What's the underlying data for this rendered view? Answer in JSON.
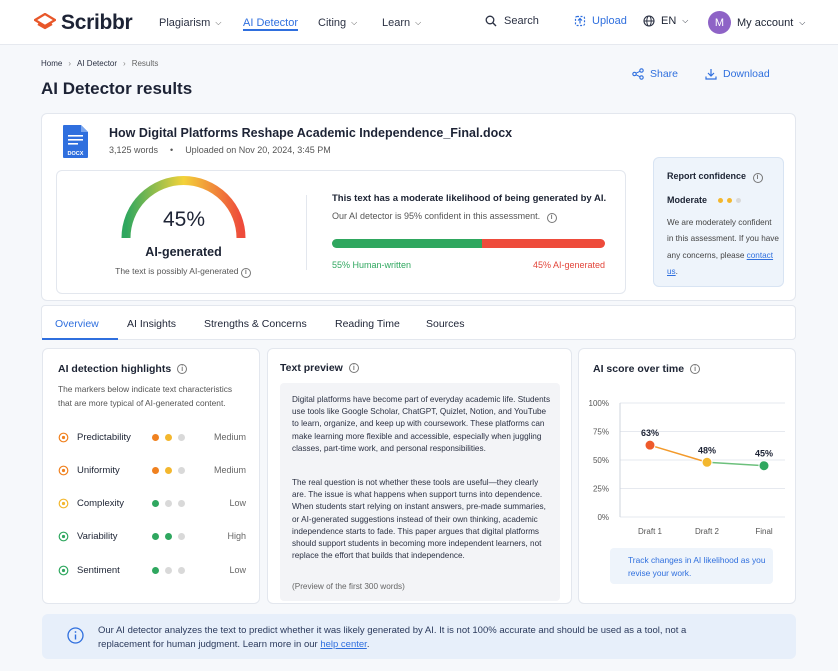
{
  "brand": {
    "name": "Scribbr",
    "accent": "#2f6fde",
    "logo_color": "#e8572a"
  },
  "nav": {
    "plagiarism": "Plagiarism",
    "ai_detector": "AI Detector",
    "citing": "Citing",
    "learn": "Learn",
    "search": "Search",
    "upload": "Upload",
    "lang": "EN",
    "avatar_initial": "M",
    "account": "My account"
  },
  "breadcrumb": {
    "home": "Home",
    "section": "AI Detector",
    "current": "Results"
  },
  "page": {
    "title": "AI Detector results",
    "share": "Share",
    "download": "Download"
  },
  "document": {
    "name": "How Digital Platforms Reshape Academic Independence_Final.docx",
    "file_type": "DOCX",
    "words": "3,125 words",
    "uploaded": "Uploaded on Nov 20, 2024, 3:45 PM"
  },
  "score": {
    "percent": "45%",
    "value": 0.45,
    "label": "AI-generated",
    "sub": "The text is possibly AI-generated",
    "likelihood": "This text has a moderate likelihood of being generated by AI.",
    "confidence": "Our AI detector is 95% confident in this assessment.",
    "human_label": "55% Human-written",
    "ai_label": "45% AI-generated",
    "human_fraction": 0.55
  },
  "report_confidence": {
    "title": "Report confidence",
    "level": "Moderate",
    "dots_filled": 2,
    "dots_total": 3,
    "text": "We are moderately confident in this assessment. If you have any concerns, please",
    "link": "contact us",
    "end": "."
  },
  "tabs": [
    "Overview",
    "AI Insights",
    "Strengths & Concerns",
    "Reading Time",
    "Sources"
  ],
  "highlights": {
    "title": "AI detection highlights",
    "desc": "The markers below indicate text characteristics that are more typical of AI-generated content.",
    "items": [
      {
        "name": "Predictability",
        "level": "Medium",
        "dots": [
          "#f0811f",
          "#f3b72e",
          "#d9d9d9"
        ],
        "icon_color": "#f0811f"
      },
      {
        "name": "Uniformity",
        "level": "Medium",
        "dots": [
          "#f0811f",
          "#f3b72e",
          "#d9d9d9"
        ],
        "icon_color": "#f0811f"
      },
      {
        "name": "Complexity",
        "level": "Low",
        "dots": [
          "#2fa75f",
          "#d9d9d9",
          "#d9d9d9"
        ],
        "icon_color": "#f3b72e"
      },
      {
        "name": "Variability",
        "level": "High",
        "dots": [
          "#2fa75f",
          "#2fa75f",
          "#d9d9d9"
        ],
        "icon_color": "#2fa75f"
      },
      {
        "name": "Sentiment",
        "level": "Low",
        "dots": [
          "#2fa75f",
          "#d9d9d9",
          "#d9d9d9"
        ],
        "icon_color": "#2fa75f"
      }
    ]
  },
  "preview": {
    "title": "Text preview",
    "p1": "Digital platforms have become part of everyday academic life. Students use tools like Google Scholar, ChatGPT, Quizlet, Notion, and YouTube to learn, organize, and keep up with coursework. These platforms can make learning more flexible and accessible, especially when juggling classes, part-time work, and personal responsibilities.",
    "p2": "The real question is not whether these tools are useful—they clearly are. The issue is what happens when support turns into dependence. When students start relying on instant answers, pre-made summaries, or AI-generated suggestions instead of their own thinking, academic independence starts to fade. This paper argues that digital platforms should support students in becoming more independent learners, not replace the effort that builds that independence.",
    "footer": "(Preview of the first 300 words)"
  },
  "chart_data": {
    "type": "line",
    "title": "AI score over time",
    "categories": [
      "Draft 1",
      "Draft 2",
      "Final"
    ],
    "values": [
      63,
      48,
      45
    ],
    "data_labels": [
      "63%",
      "48%",
      "45%"
    ],
    "point_colors": [
      "#ee5a2b",
      "#f3b72e",
      "#2fa75f"
    ],
    "yticks": [
      "0%",
      "25%",
      "50%",
      "75%",
      "100%"
    ],
    "ylim": [
      0,
      100
    ],
    "grid": true
  },
  "track": {
    "text": "Track changes in AI likelihood as you revise your work."
  },
  "footer": {
    "text": "Our AI detector analyzes the text to predict whether it was likely generated by AI. It is not 100% accurate and should be used  as a tool, not a replacement for human judgment. Learn more in our",
    "link": "help center",
    "end": "."
  }
}
